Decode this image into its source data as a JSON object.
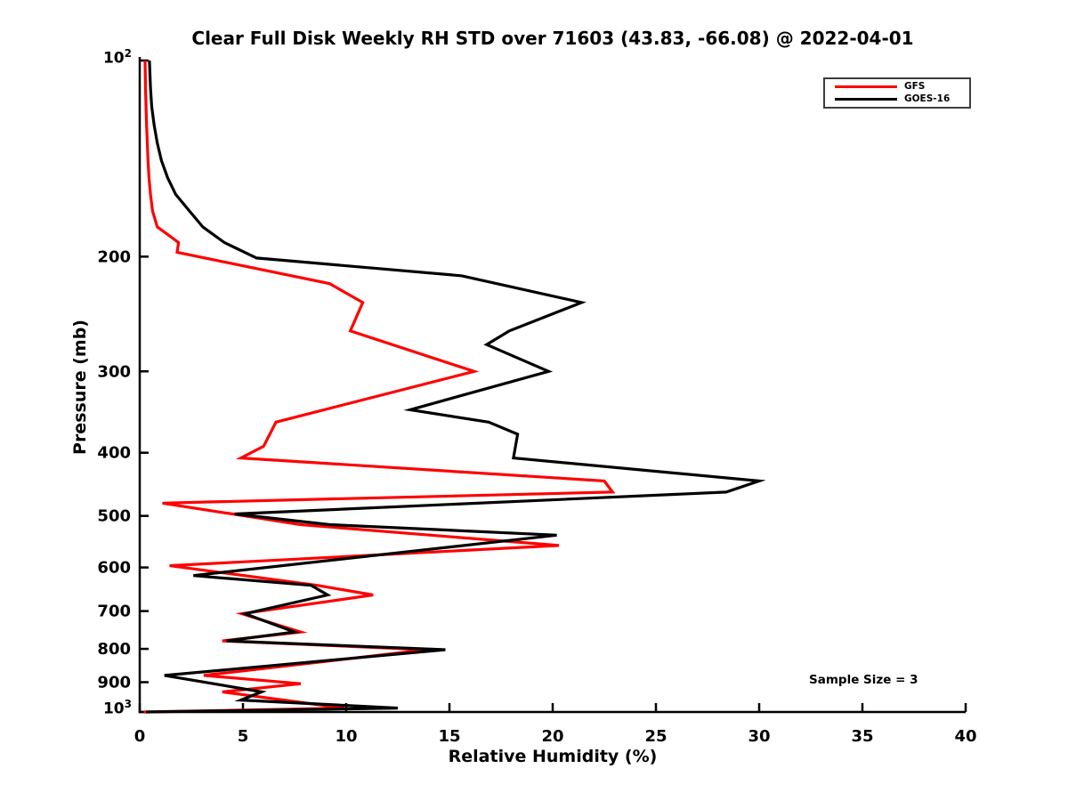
{
  "title": "Clear Full Disk Weekly RH STD over 71603 (43.83, -66.08) @ 2022-04-01",
  "annotation": {
    "sample_size": "Sample Size = 3"
  },
  "legend": {
    "items": [
      {
        "label": "GFS",
        "color": "#ff0000"
      },
      {
        "label": "GOES-16",
        "color": "#000000"
      }
    ]
  },
  "axes": {
    "x": {
      "label": "Relative Humidity (%)",
      "min": 0,
      "max": 40,
      "ticks": [
        0,
        5,
        10,
        15,
        20,
        25,
        30,
        35,
        40
      ]
    },
    "y": {
      "label": "Pressure (mb)",
      "scale": "log",
      "inverted": true,
      "min": 100,
      "max": 1000,
      "top_tick": {
        "base": "10",
        "exp": "2"
      },
      "bottom_tick": {
        "base": "10",
        "exp": "3"
      },
      "ticks": [
        200,
        300,
        400,
        500,
        600,
        700,
        800,
        900
      ]
    }
  },
  "chart_data": {
    "type": "line",
    "title": "Clear Full Disk Weekly RH STD over 71603 (43.83, -66.08) @ 2022-04-01",
    "xlabel": "Relative Humidity (%)",
    "ylabel": "Pressure (mb)",
    "xlim": [
      0,
      40
    ],
    "ylim": [
      100,
      1000
    ],
    "y_scale": "log-inverted",
    "grid": false,
    "legend_position": "upper right",
    "annotation": "Sample Size = 3",
    "series": [
      {
        "name": "GFS",
        "color": "#ff0000",
        "points_pressure_rh": [
          [
            100,
            0.26
          ],
          [
            110.2,
            0.28
          ],
          [
            125.6,
            0.33
          ],
          [
            142.4,
            0.4
          ],
          [
            151.3,
            0.45
          ],
          [
            160.5,
            0.52
          ],
          [
            170.1,
            0.62
          ],
          [
            180.0,
            0.85
          ],
          [
            190.3,
            1.88
          ],
          [
            197.0,
            1.81
          ],
          [
            220.0,
            9.2
          ],
          [
            235.2,
            10.8
          ],
          [
            260.0,
            10.2
          ],
          [
            300.0,
            16.2
          ],
          [
            359.0,
            6.6
          ],
          [
            390.9,
            6.0
          ],
          [
            407.5,
            4.9
          ],
          [
            441.9,
            22.5
          ],
          [
            459.7,
            22.9
          ],
          [
            478.0,
            1.1
          ],
          [
            515.7,
            7.8
          ],
          [
            555.2,
            20.3
          ],
          [
            596.3,
            1.45
          ],
          [
            639.1,
            8.6
          ],
          [
            661.2,
            11.3
          ],
          [
            706.6,
            4.95
          ],
          [
            753.6,
            7.8
          ],
          [
            777.8,
            4.0
          ],
          [
            802.4,
            13.9
          ],
          [
            878.6,
            3.1
          ],
          [
            904.9,
            7.8
          ],
          [
            931.5,
            4.0
          ],
          [
            986.1,
            9.9
          ],
          [
            1000.0,
            0.2
          ]
        ]
      },
      {
        "name": "GOES-16",
        "color": "#000000",
        "points_pressure_rh": [
          [
            100,
            0.47
          ],
          [
            110.2,
            0.52
          ],
          [
            117.8,
            0.58
          ],
          [
            125.6,
            0.7
          ],
          [
            133.8,
            0.85
          ],
          [
            142.4,
            1.05
          ],
          [
            151.3,
            1.35
          ],
          [
            160.5,
            1.74
          ],
          [
            170.1,
            2.4
          ],
          [
            180.0,
            3.05
          ],
          [
            190.3,
            4.1
          ],
          [
            201.0,
            5.66
          ],
          [
            214.0,
            15.6
          ],
          [
            235.2,
            21.4
          ],
          [
            260.0,
            17.9
          ],
          [
            272.9,
            16.8
          ],
          [
            300.0,
            19.8
          ],
          [
            343.6,
            13.1
          ],
          [
            359.0,
            16.9
          ],
          [
            374.7,
            18.3
          ],
          [
            407.5,
            18.1
          ],
          [
            441.9,
            30.0
          ],
          [
            459.7,
            28.4
          ],
          [
            496.6,
            4.6
          ],
          [
            515.7,
            9.2
          ],
          [
            535.2,
            20.2
          ],
          [
            617.5,
            2.6
          ],
          [
            639.1,
            8.3
          ],
          [
            661.2,
            9.1
          ],
          [
            706.6,
            5.1
          ],
          [
            753.6,
            7.5
          ],
          [
            777.8,
            4.2
          ],
          [
            802.4,
            14.8
          ],
          [
            878.6,
            1.2
          ],
          [
            931.5,
            5.9
          ],
          [
            958.6,
            4.9
          ],
          [
            986.1,
            12.5
          ],
          [
            1000.0,
            0.3
          ]
        ]
      }
    ]
  }
}
